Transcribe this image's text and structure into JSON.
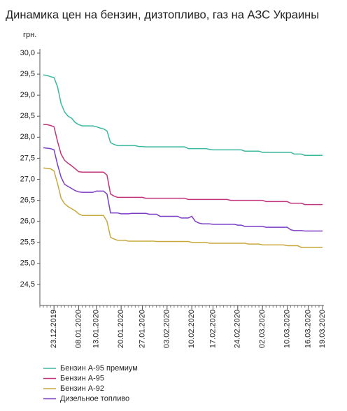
{
  "chart_data": {
    "type": "line",
    "title": "Динамика цен на бензин, дизтопливо, газ на АЗС Украины",
    "y_label": "грн.",
    "categories": [
      null,
      null,
      null,
      null,
      "23.12.2019",
      null,
      null,
      null,
      null,
      null,
      null,
      "08.01.2020",
      null,
      null,
      null,
      null,
      "13.01.2020",
      null,
      null,
      null,
      null,
      null,
      null,
      "20.01.2020",
      null,
      null,
      null,
      null,
      null,
      "27.01.2020",
      null,
      null,
      null,
      null,
      null,
      null,
      "03.02.2020",
      null,
      null,
      null,
      null,
      null,
      null,
      "10.02.2020",
      null,
      null,
      null,
      null,
      null,
      "17.02.2020",
      null,
      null,
      null,
      null,
      null,
      null,
      "24.02.2020",
      null,
      null,
      null,
      null,
      null,
      null,
      "02.03.2020",
      null,
      null,
      null,
      null,
      null,
      null,
      "10.03.2020",
      null,
      null,
      null,
      null,
      null,
      "16.03.2020",
      null,
      null,
      null,
      "19.03.2020"
    ],
    "ylim": [
      24,
      30
    ],
    "yticks": [
      {
        "value": 24.5,
        "label": "24,5"
      },
      {
        "value": 25,
        "label": "25,0"
      },
      {
        "value": 25.5,
        "label": "25,5"
      },
      {
        "value": 26,
        "label": "26,0"
      },
      {
        "value": 26.5,
        "label": "26,5"
      },
      {
        "value": 27,
        "label": "27,0"
      },
      {
        "value": 27.5,
        "label": "27,5"
      },
      {
        "value": 28,
        "label": "28,0"
      },
      {
        "value": 28.5,
        "label": "28,5"
      },
      {
        "value": 29,
        "label": "29,0"
      },
      {
        "value": 29.5,
        "label": "29,5"
      },
      {
        "value": 30,
        "label": "30,0"
      }
    ],
    "series": [
      {
        "name": "Бензин А-95 премиум",
        "color": "#3cb89e",
        "values": [
          null,
          29.48,
          29.47,
          29.44,
          29.42,
          29.2,
          28.8,
          28.6,
          28.5,
          28.45,
          28.35,
          28.3,
          28.27,
          28.27,
          28.27,
          28.27,
          28.25,
          28.22,
          28.2,
          28.15,
          27.87,
          27.83,
          27.8,
          27.8,
          27.8,
          27.8,
          27.8,
          27.8,
          27.78,
          27.78,
          27.77,
          27.77,
          27.77,
          27.77,
          27.77,
          27.77,
          27.77,
          27.77,
          27.77,
          27.77,
          27.77,
          27.77,
          27.73,
          27.73,
          27.73,
          27.73,
          27.73,
          27.73,
          27.71,
          27.7,
          27.7,
          27.7,
          27.7,
          27.7,
          27.7,
          27.7,
          27.7,
          27.7,
          27.67,
          27.67,
          27.67,
          27.67,
          27.67,
          27.64,
          27.64,
          27.64,
          27.64,
          27.64,
          27.64,
          27.64,
          27.64,
          27.64,
          27.6,
          27.6,
          27.6,
          27.57,
          27.57,
          27.57,
          27.57,
          27.57,
          27.57
        ]
      },
      {
        "name": "Бензин А-95",
        "color": "#c2347c",
        "values": [
          null,
          28.3,
          28.3,
          28.28,
          28.25,
          27.9,
          27.6,
          27.45,
          27.38,
          27.32,
          27.25,
          27.18,
          27.17,
          27.17,
          27.17,
          27.17,
          27.17,
          27.17,
          27.17,
          27.1,
          26.65,
          26.6,
          26.57,
          26.57,
          26.57,
          26.57,
          26.57,
          26.57,
          26.57,
          26.57,
          26.55,
          26.55,
          26.55,
          26.55,
          26.55,
          26.55,
          26.55,
          26.55,
          26.55,
          26.55,
          26.55,
          26.55,
          26.52,
          26.52,
          26.52,
          26.52,
          26.52,
          26.52,
          26.52,
          26.52,
          26.52,
          26.52,
          26.52,
          26.52,
          26.5,
          26.5,
          26.5,
          26.5,
          26.5,
          26.5,
          26.5,
          26.5,
          26.5,
          26.5,
          26.47,
          26.47,
          26.47,
          26.47,
          26.47,
          26.47,
          26.47,
          26.43,
          26.43,
          26.43,
          26.43,
          26.4,
          26.4,
          26.4,
          26.4,
          26.4,
          26.4
        ]
      },
      {
        "name": "Бензин А-92",
        "color": "#c9a83c",
        "values": [
          null,
          27.27,
          27.26,
          27.25,
          27.2,
          26.9,
          26.55,
          26.42,
          26.35,
          26.3,
          26.25,
          26.18,
          26.14,
          26.14,
          26.14,
          26.14,
          26.14,
          26.14,
          26.14,
          26.0,
          25.62,
          25.58,
          25.55,
          25.55,
          25.55,
          25.53,
          25.53,
          25.53,
          25.53,
          25.53,
          25.53,
          25.53,
          25.53,
          25.52,
          25.52,
          25.52,
          25.52,
          25.52,
          25.52,
          25.52,
          25.52,
          25.52,
          25.52,
          25.5,
          25.5,
          25.5,
          25.5,
          25.5,
          25.48,
          25.48,
          25.48,
          25.48,
          25.48,
          25.48,
          25.48,
          25.48,
          25.48,
          25.48,
          25.48,
          25.46,
          25.46,
          25.46,
          25.46,
          25.44,
          25.44,
          25.44,
          25.44,
          25.44,
          25.44,
          25.44,
          25.42,
          25.42,
          25.42,
          25.42,
          25.38,
          25.38,
          25.38,
          25.38,
          25.38,
          25.38,
          25.38
        ]
      },
      {
        "name": "Дизельное топливо",
        "color": "#7b3cc6",
        "values": [
          null,
          27.75,
          27.74,
          27.73,
          27.7,
          27.35,
          27.05,
          26.88,
          26.83,
          26.78,
          26.73,
          26.7,
          26.69,
          26.69,
          26.69,
          26.69,
          26.72,
          26.72,
          26.72,
          26.65,
          26.2,
          26.2,
          26.2,
          26.18,
          26.18,
          26.18,
          26.19,
          26.19,
          26.19,
          26.19,
          26.19,
          26.17,
          26.17,
          26.17,
          26.12,
          26.12,
          26.12,
          26.12,
          26.12,
          26.12,
          26.08,
          26.08,
          26.08,
          26.12,
          26.0,
          25.96,
          25.94,
          25.94,
          25.94,
          25.93,
          25.93,
          25.93,
          25.93,
          25.93,
          25.93,
          25.93,
          25.91,
          25.91,
          25.88,
          25.88,
          25.88,
          25.88,
          25.88,
          25.88,
          25.86,
          25.86,
          25.86,
          25.86,
          25.86,
          25.86,
          25.86,
          25.8,
          25.78,
          25.78,
          25.78,
          25.77,
          25.77,
          25.77,
          25.77,
          25.77,
          25.77
        ]
      }
    ]
  }
}
